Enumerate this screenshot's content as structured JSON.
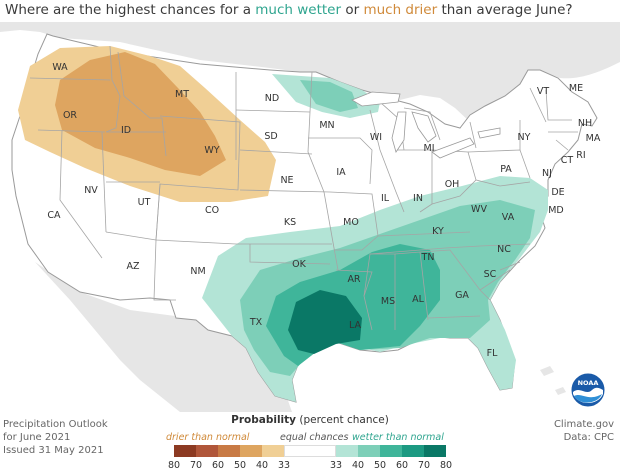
{
  "title": {
    "part1": "Where are the highest chances for a ",
    "wetter": "much wetter",
    "part2": " or ",
    "drier": "much drier",
    "part3": " than average June?"
  },
  "states": [
    "WA",
    "OR",
    "ID",
    "MT",
    "WY",
    "ND",
    "SD",
    "NE",
    "MN",
    "WI",
    "MI",
    "IA",
    "IL",
    "IN",
    "OH",
    "PA",
    "NY",
    "VT",
    "ME",
    "NH",
    "MA",
    "RI",
    "CT",
    "NJ",
    "DE",
    "MD",
    "WV",
    "VA",
    "KY",
    "TN",
    "NC",
    "SC",
    "GA",
    "AL",
    "MS",
    "LA",
    "AR",
    "MO",
    "KS",
    "CO",
    "UT",
    "NV",
    "CA",
    "AZ",
    "NM",
    "OK",
    "TX",
    "FL"
  ],
  "footer_left": [
    "Precipitation Outlook",
    "for June 2021",
    "Issued 31 May 2021"
  ],
  "footer_right": [
    "Climate.gov",
    "Data: CPC"
  ],
  "logo": "NOAA",
  "legend": {
    "title_bold": "Probability",
    "title_rest": " (percent chance)",
    "drier_label": "drier than normal",
    "equal_label": "equal chances",
    "wetter_label": "wetter than normal",
    "ticks": [
      "80",
      "70",
      "60",
      "50",
      "40",
      "33",
      "33",
      "40",
      "50",
      "60",
      "70",
      "80"
    ]
  },
  "colors": {
    "drier": [
      "#8c3a22",
      "#b0563a",
      "#c87a45",
      "#dea560",
      "#f0cf95"
    ],
    "equal": "#ffffff",
    "wetter": [
      "#b3e4d6",
      "#7dcfb8",
      "#3fb59a",
      "#1c9a82",
      "#0a7866"
    ],
    "wetter_text": "#2fa58f",
    "drier_text": "#d08a3a"
  }
}
